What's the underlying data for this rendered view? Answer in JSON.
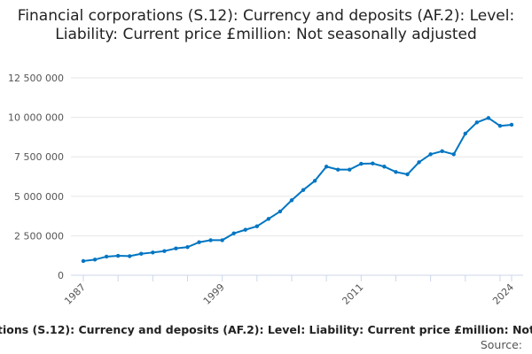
{
  "chart_data": {
    "type": "line",
    "title": "Financial corporations (S.12): Currency and deposits (AF.2): Level: Liability: Current price £million: Not seasonally adjusted",
    "x": [
      1987,
      1988,
      1989,
      1990,
      1991,
      1992,
      1993,
      1994,
      1995,
      1996,
      1997,
      1998,
      1999,
      2000,
      2001,
      2002,
      2003,
      2004,
      2005,
      2006,
      2007,
      2008,
      2009,
      2010,
      2011,
      2012,
      2013,
      2014,
      2015,
      2016,
      2017,
      2018,
      2019,
      2020,
      2021,
      2022,
      2023,
      2024
    ],
    "values": [
      900000,
      990000,
      1180000,
      1230000,
      1210000,
      1360000,
      1440000,
      1530000,
      1700000,
      1780000,
      2090000,
      2220000,
      2220000,
      2650000,
      2880000,
      3100000,
      3570000,
      4040000,
      4750000,
      5400000,
      5980000,
      6880000,
      6690000,
      6690000,
      7060000,
      7080000,
      6880000,
      6540000,
      6390000,
      7160000,
      7660000,
      7860000,
      7660000,
      8970000,
      9680000,
      9960000,
      9460000,
      9530000
    ],
    "ylim": [
      0,
      12500000
    ],
    "yticks": [
      "0",
      "2 500 000",
      "5 000 000",
      "7 500 000",
      "10 000 000",
      "12 500 000"
    ],
    "ytick_values": [
      0,
      2500000,
      5000000,
      7500000,
      10000000,
      12500000
    ],
    "xtick_labels": [
      "1987",
      "1999",
      "2011",
      "2024"
    ],
    "grid": "horizontal",
    "line_color": "#0075c2"
  },
  "footer": {
    "title_visible": "tions (S.12): Currency and deposits (AF.2): Level: Liability: Current price £million: Not",
    "source_label": "Source:"
  }
}
